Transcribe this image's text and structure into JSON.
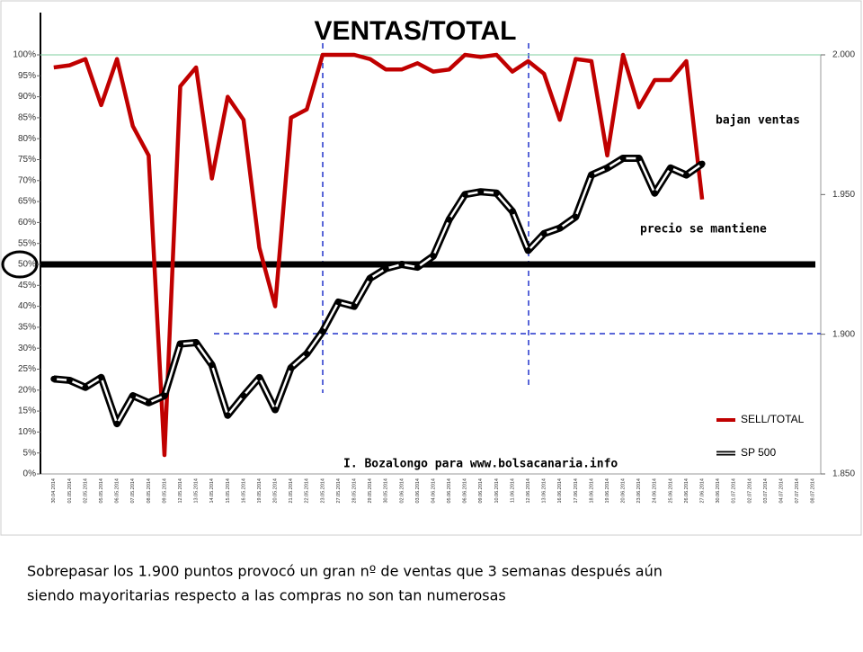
{
  "chart_data": {
    "type": "line",
    "title": "VENTAS/TOTAL",
    "categories": [
      "30.04.2014",
      "01.05.2014",
      "02.05.2014",
      "05.05.2014",
      "06.05.2014",
      "07.05.2014",
      "08.05.2014",
      "09.05.2014",
      "12.05.2014",
      "13.05.2014",
      "14.05.2014",
      "15.05.2014",
      "16.05.2014",
      "19.05.2014",
      "20.05.2014",
      "21.05.2014",
      "22.05.2014",
      "23.05.2014",
      "27.05.2014",
      "28.05.2014",
      "29.05.2014",
      "30.05.2014",
      "02.06.2014",
      "03.06.2014",
      "04.06.2014",
      "05.06.2014",
      "06.06.2014",
      "09.06.2014",
      "10.06.2014",
      "11.06.2014",
      "12.06.2014",
      "13.06.2014",
      "16.06.2014",
      "17.06.2014",
      "18.06.2014",
      "19.06.2014",
      "20.06.2014",
      "23.06.2014",
      "24.06.2014",
      "25.06.2014",
      "26.06.2014",
      "27.06.2014",
      "30.06.2014",
      "01.07.2014",
      "02.07.2014",
      "03.07.2014",
      "04.07.2014",
      "07.07.2014",
      "08.07.2014"
    ],
    "series": [
      {
        "name": "SELL/TOTAL",
        "color": "#c00000",
        "values": [
          97,
          97.5,
          99,
          88,
          99,
          83,
          76,
          4.5,
          92.5,
          97,
          70.5,
          90,
          84.5,
          54,
          40,
          85,
          87,
          100,
          100,
          100,
          99,
          96.5,
          96.5,
          98,
          96,
          96.5,
          100,
          99.5,
          100,
          96,
          98.5,
          95.5,
          84.5,
          99,
          98.5,
          76,
          100,
          87.5,
          94,
          94,
          98.5,
          65.5,
          null,
          null,
          null,
          null,
          null,
          null,
          null
        ]
      },
      {
        "name": "SP 500",
        "color": "#000000",
        "axis": "y2",
        "values": [
          1884,
          1883.5,
          1881,
          1884.5,
          1868,
          1878,
          1875.5,
          1878,
          1896.5,
          1897,
          1889,
          1871,
          1878,
          1884.5,
          1873,
          1888,
          1893,
          1901,
          1911.5,
          1910,
          1920,
          1923.5,
          1925,
          1924,
          1928,
          1941,
          1950,
          1951,
          1950.5,
          1944,
          1930,
          1936,
          1938,
          1942,
          1957,
          1959.5,
          1963,
          1963,
          1950.5,
          1959.5,
          1957,
          1961,
          null,
          null,
          null,
          null,
          null,
          null,
          null
        ]
      }
    ],
    "ylim": [
      0,
      100
    ],
    "yticks": [
      {
        "value": 0,
        "label": "0%"
      },
      {
        "value": 5,
        "label": "5%"
      },
      {
        "value": 10,
        "label": "10%"
      },
      {
        "value": 15,
        "label": "15%"
      },
      {
        "value": 20,
        "label": "20%"
      },
      {
        "value": 25,
        "label": "25%"
      },
      {
        "value": 30,
        "label": "30%"
      },
      {
        "value": 35,
        "label": "35%"
      },
      {
        "value": 40,
        "label": "40%"
      },
      {
        "value": 45,
        "label": "45%"
      },
      {
        "value": 50,
        "label": "50%"
      },
      {
        "value": 55,
        "label": "55%"
      },
      {
        "value": 60,
        "label": "60%"
      },
      {
        "value": 65,
        "label": "65%"
      },
      {
        "value": 70,
        "label": "70%"
      },
      {
        "value": 75,
        "label": "75%"
      },
      {
        "value": 80,
        "label": "80%"
      },
      {
        "value": 85,
        "label": "85%"
      },
      {
        "value": 90,
        "label": "90%"
      },
      {
        "value": 95,
        "label": "95%"
      },
      {
        "value": 100,
        "label": "100%"
      }
    ],
    "y2lim": [
      1850,
      2000
    ],
    "y2ticks": [
      {
        "value": 1850,
        "label": "1.850"
      },
      {
        "value": 1900,
        "label": "1.900"
      },
      {
        "value": 1950,
        "label": "1.950"
      },
      {
        "value": 2000,
        "label": "2.000"
      }
    ],
    "hline": 50,
    "legend": "lower right",
    "annotations": [
      "bajan ventas",
      "precio se mantiene",
      "I. Bozalongo para www.bolsacanaria.info"
    ]
  },
  "caption": [
    "Sobrepasar los 1.900 puntos provocó un gran nº de ventas que 3 semanas después aún",
    "siendo mayoritarias respecto a las compras no son tan numerosas"
  ]
}
